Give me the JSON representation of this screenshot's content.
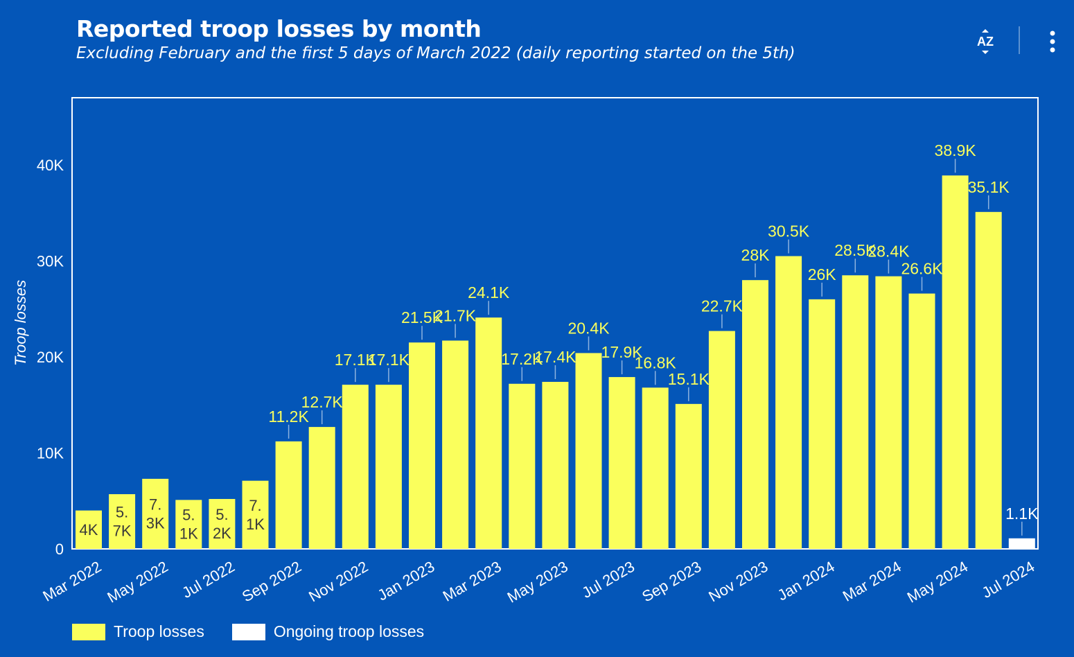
{
  "header": {
    "title": "Reported troop losses by month",
    "subtitle": "Excluding February and the first 5 days of March 2022 (daily reporting started on the 5th)"
  },
  "toolbar": {
    "sort_icon": "sort-az-icon",
    "sort_text": "AZ",
    "more_icon": "more-vertical-icon"
  },
  "colors": {
    "background": "#0456b8",
    "bar": "#faff5c",
    "ongoing_bar": "#ffffff",
    "text": "#ffffff",
    "label": "#faff5c",
    "label_dark": "#3a3a3a"
  },
  "legend": {
    "items": [
      {
        "label": "Troop losses",
        "color": "#faff5c"
      },
      {
        "label": "Ongoing troop losses",
        "color": "#ffffff"
      }
    ]
  },
  "chart_data": {
    "type": "bar",
    "title": "Reported troop losses by month",
    "subtitle": "Excluding February and the first 5 days of March 2022 (daily reporting started on the 5th)",
    "xlabel": "",
    "ylabel": "Troop losses",
    "ylim": [
      0,
      47000
    ],
    "yticks": [
      0,
      10000,
      20000,
      30000,
      40000
    ],
    "ytick_labels": [
      "0",
      "10K",
      "20K",
      "30K",
      "40K"
    ],
    "xtick_labels": [
      "Mar 2022",
      "May 2022",
      "Jul 2022",
      "Sep 2022",
      "Nov 2022",
      "Jan 2023",
      "Mar 2023",
      "May 2023",
      "Jul 2023",
      "Sep 2023",
      "Nov 2023",
      "Jan 2024",
      "Mar 2024",
      "May 2024",
      "Jul 2024"
    ],
    "categories": [
      "Mar 2022",
      "Apr 2022",
      "May 2022",
      "Jun 2022",
      "Jul 2022",
      "Aug 2022",
      "Sep 2022",
      "Oct 2022",
      "Nov 2022",
      "Dec 2022",
      "Jan 2023",
      "Feb 2023",
      "Mar 2023",
      "Apr 2023",
      "May 2023",
      "Jun 2023",
      "Jul 2023",
      "Aug 2023",
      "Sep 2023",
      "Oct 2023",
      "Nov 2023",
      "Dec 2023",
      "Jan 2024",
      "Feb 2024",
      "Mar 2024",
      "Apr 2024",
      "May 2024",
      "Jun 2024",
      "Jul 2024"
    ],
    "series": [
      {
        "name": "Troop losses",
        "color": "#faff5c",
        "values": [
          4000,
          5700,
          7300,
          5100,
          5200,
          7100,
          11200,
          12700,
          17100,
          17100,
          21500,
          21700,
          24100,
          17200,
          17400,
          20400,
          17900,
          16800,
          15100,
          22700,
          28000,
          30500,
          26000,
          28500,
          28400,
          26600,
          38900,
          35100,
          null
        ],
        "labels": [
          "4K",
          "5.7K",
          "7.3K",
          "5.1K",
          "5.2K",
          "7.1K",
          "11.2K",
          "12.7K",
          "17.1K",
          "17.1K",
          "21.5K",
          "21.7K",
          "24.1K",
          "17.2K",
          "17.4K",
          "20.4K",
          "17.9K",
          "16.8K",
          "15.1K",
          "22.7K",
          "28K",
          "30.5K",
          "26K",
          "28.5K",
          "28.4K",
          "26.6K",
          "38.9K",
          "35.1K",
          ""
        ]
      },
      {
        "name": "Ongoing troop losses",
        "color": "#ffffff",
        "values": [
          null,
          null,
          null,
          null,
          null,
          null,
          null,
          null,
          null,
          null,
          null,
          null,
          null,
          null,
          null,
          null,
          null,
          null,
          null,
          null,
          null,
          null,
          null,
          null,
          null,
          null,
          null,
          null,
          1100
        ],
        "labels": [
          "",
          "",
          "",
          "",
          "",
          "",
          "",
          "",
          "",
          "",
          "",
          "",
          "",
          "",
          "",
          "",
          "",
          "",
          "",
          "",
          "",
          "",
          "",
          "",
          "",
          "",
          "",
          "",
          "1.1K"
        ]
      }
    ],
    "grid": false,
    "legend_position": "bottom-left"
  }
}
